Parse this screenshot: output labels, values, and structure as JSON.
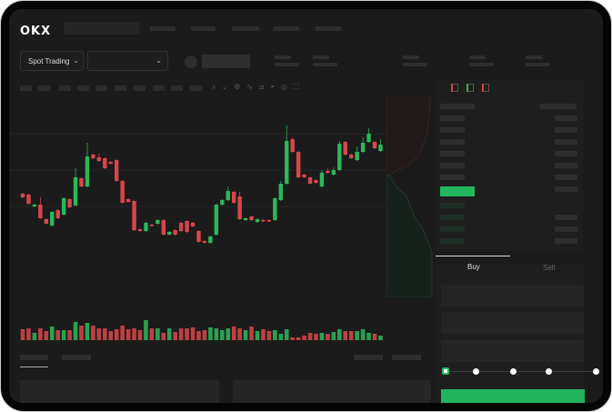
{
  "header": {
    "logo": "OKX"
  },
  "toolbar": {
    "market_type": "Spot Trading",
    "pair_select": "",
    "chevron": "chevron-down-icon"
  },
  "tools": [
    "indicators-icon",
    "chart-type-icon",
    "settings-icon",
    "line-icon",
    "ruler-icon",
    "camera-icon",
    "target-icon",
    "fullscreen-icon"
  ],
  "orderbook": {
    "view_icons": [
      "orderbook-both-icon",
      "orderbook-bids-icon",
      "orderbook-asks-icon"
    ]
  },
  "trade": {
    "tabs": [
      "Buy",
      "Sell"
    ],
    "active_tab": "Buy",
    "slider_value_percent": 0,
    "slider_steps": [
      0,
      25,
      50,
      75,
      100
    ]
  },
  "colors": {
    "up": "#2bb85a",
    "down": "#d9464a",
    "background": "#1b1b1b",
    "buy_button": "#22b35e"
  },
  "chart_data": {
    "type": "candlestick",
    "grid": true,
    "candles": [
      [
        97,
        93,
        97,
        93
      ],
      [
        96,
        86,
        96,
        86
      ],
      [
        83,
        85,
        85,
        83
      ],
      [
        85,
        70,
        92,
        70
      ],
      [
        69,
        64,
        69,
        64
      ],
      [
        62,
        77,
        77,
        62
      ],
      [
        79,
        70,
        79,
        70
      ],
      [
        74,
        92,
        92,
        74
      ],
      [
        91,
        82,
        91,
        82
      ],
      [
        84,
        115,
        124,
        84
      ],
      [
        114,
        105,
        114,
        105
      ],
      [
        105,
        138,
        152,
        105
      ],
      [
        140,
        136,
        140,
        136
      ],
      [
        137,
        133,
        140,
        133
      ],
      [
        136,
        125,
        136,
        125
      ],
      [
        132,
        130,
        132,
        130
      ],
      [
        134,
        111,
        134,
        111
      ],
      [
        111,
        87,
        111,
        87
      ],
      [
        91,
        88,
        91,
        88
      ],
      [
        89,
        57,
        89,
        57
      ],
      [
        58,
        56,
        58,
        56
      ],
      [
        56,
        65,
        65,
        56
      ],
      [
        63,
        62,
        63,
        62
      ],
      [
        64,
        68,
        68,
        64
      ],
      [
        68,
        52,
        68,
        52
      ],
      [
        52,
        55,
        55,
        52
      ],
      [
        57,
        52,
        57,
        52
      ],
      [
        65,
        56,
        65,
        56
      ],
      [
        67,
        55,
        67,
        55
      ],
      [
        65,
        61,
        65,
        61
      ],
      [
        56,
        44,
        56,
        44
      ],
      [
        45,
        43,
        45,
        43
      ],
      [
        43,
        50,
        50,
        43
      ],
      [
        52,
        85,
        85,
        52
      ],
      [
        85,
        90,
        90,
        85
      ],
      [
        90,
        100,
        104,
        90
      ],
      [
        99,
        87,
        99,
        87
      ],
      [
        94,
        69,
        98,
        69
      ],
      [
        68,
        70,
        70,
        68
      ],
      [
        72,
        68,
        72,
        68
      ],
      [
        66,
        69,
        69,
        66
      ],
      [
        68,
        67,
        68,
        67
      ],
      [
        68,
        67,
        68,
        67
      ],
      [
        68,
        92,
        92,
        68
      ],
      [
        90,
        108,
        110,
        90
      ],
      [
        108,
        155,
        171,
        108
      ],
      [
        157,
        143,
        158,
        143
      ],
      [
        143,
        115,
        143,
        115
      ],
      [
        118,
        115,
        118,
        115
      ],
      [
        115,
        108,
        115,
        108
      ],
      [
        112,
        109,
        112,
        109
      ],
      [
        105,
        120,
        122,
        105
      ],
      [
        122,
        120,
        124,
        120
      ],
      [
        118,
        123,
        125,
        118
      ],
      [
        123,
        152,
        154,
        123
      ],
      [
        154,
        140,
        154,
        140
      ],
      [
        140,
        136,
        140,
        136
      ],
      [
        134,
        143,
        148,
        134
      ],
      [
        143,
        153,
        158,
        143
      ],
      [
        154,
        163,
        168,
        154
      ],
      [
        154,
        147,
        154,
        147
      ],
      [
        144,
        151,
        156,
        144
      ]
    ],
    "volumes": [
      12,
      13,
      8,
      13,
      10,
      15,
      11,
      11,
      11,
      20,
      16,
      19,
      16,
      13,
      13,
      10,
      12,
      16,
      12,
      13,
      11,
      22,
      13,
      13,
      8,
      13,
      9,
      13,
      13,
      14,
      10,
      11,
      14,
      13,
      11,
      13,
      15,
      13,
      11,
      15,
      10,
      12,
      10,
      11,
      7,
      12,
      3,
      3,
      5,
      8,
      7,
      8,
      7,
      9,
      12,
      10,
      10,
      10,
      12,
      8,
      7,
      5
    ]
  }
}
